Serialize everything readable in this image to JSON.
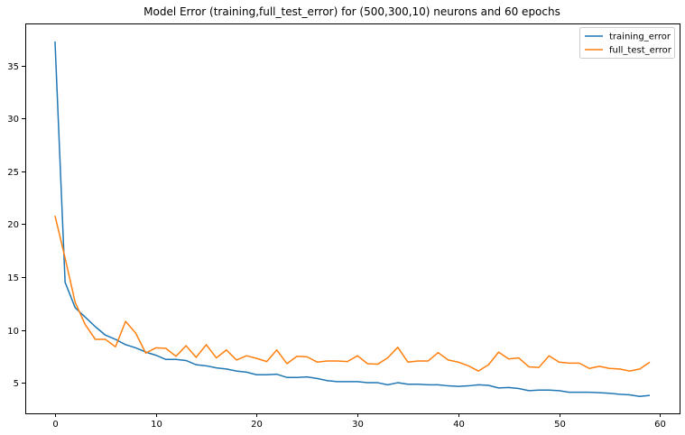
{
  "chart_data": {
    "type": "line",
    "title": "Model Error (training,full_test_error) for (500,300,10) neurons and 60 epochs",
    "xlabel": "",
    "ylabel": "",
    "xlim": [
      -2.95,
      61.95
    ],
    "ylim": [
      2.1,
      39.0
    ],
    "xticks": [
      0,
      10,
      20,
      30,
      40,
      50,
      60
    ],
    "yticks": [
      5,
      10,
      15,
      20,
      25,
      30,
      35
    ],
    "grid": false,
    "legend_position": "top-right",
    "x": [
      0,
      1,
      2,
      3,
      4,
      5,
      6,
      7,
      8,
      9,
      10,
      11,
      12,
      13,
      14,
      15,
      16,
      17,
      18,
      19,
      20,
      21,
      22,
      23,
      24,
      25,
      26,
      27,
      28,
      29,
      30,
      31,
      32,
      33,
      34,
      35,
      36,
      37,
      38,
      39,
      40,
      41,
      42,
      43,
      44,
      45,
      46,
      47,
      48,
      49,
      50,
      51,
      52,
      53,
      54,
      55,
      56,
      57,
      58,
      59
    ],
    "series": [
      {
        "name": "training_error",
        "color": "#1f77b4",
        "values": [
          37.3,
          14.5,
          12.1,
          11.2,
          10.3,
          9.5,
          9.1,
          8.6,
          8.3,
          7.9,
          7.6,
          7.2,
          7.2,
          7.1,
          6.7,
          6.6,
          6.4,
          6.3,
          6.1,
          6.0,
          5.75,
          5.75,
          5.8,
          5.5,
          5.5,
          5.55,
          5.4,
          5.2,
          5.1,
          5.1,
          5.1,
          5.0,
          5.0,
          4.8,
          5.0,
          4.85,
          4.85,
          4.8,
          4.8,
          4.7,
          4.65,
          4.7,
          4.8,
          4.75,
          4.5,
          4.55,
          4.45,
          4.25,
          4.3,
          4.3,
          4.25,
          4.1,
          4.1,
          4.1,
          4.05,
          4.0,
          3.9,
          3.85,
          3.7,
          3.8
        ]
      },
      {
        "name": "full_test_error",
        "color": "#ff7f0e",
        "values": [
          20.8,
          16.8,
          12.6,
          10.5,
          9.1,
          9.1,
          8.4,
          10.8,
          9.7,
          7.8,
          8.3,
          8.25,
          7.5,
          8.5,
          7.4,
          8.6,
          7.35,
          8.1,
          7.15,
          7.55,
          7.3,
          7.0,
          8.1,
          6.8,
          7.5,
          7.45,
          6.95,
          7.05,
          7.05,
          7.0,
          7.55,
          6.8,
          6.75,
          7.35,
          8.35,
          6.95,
          7.05,
          7.05,
          7.85,
          7.15,
          6.95,
          6.6,
          6.1,
          6.7,
          7.9,
          7.25,
          7.35,
          6.5,
          6.45,
          7.55,
          6.95,
          6.85,
          6.85,
          6.35,
          6.55,
          6.35,
          6.3,
          6.1,
          6.3,
          6.95
        ]
      }
    ]
  }
}
